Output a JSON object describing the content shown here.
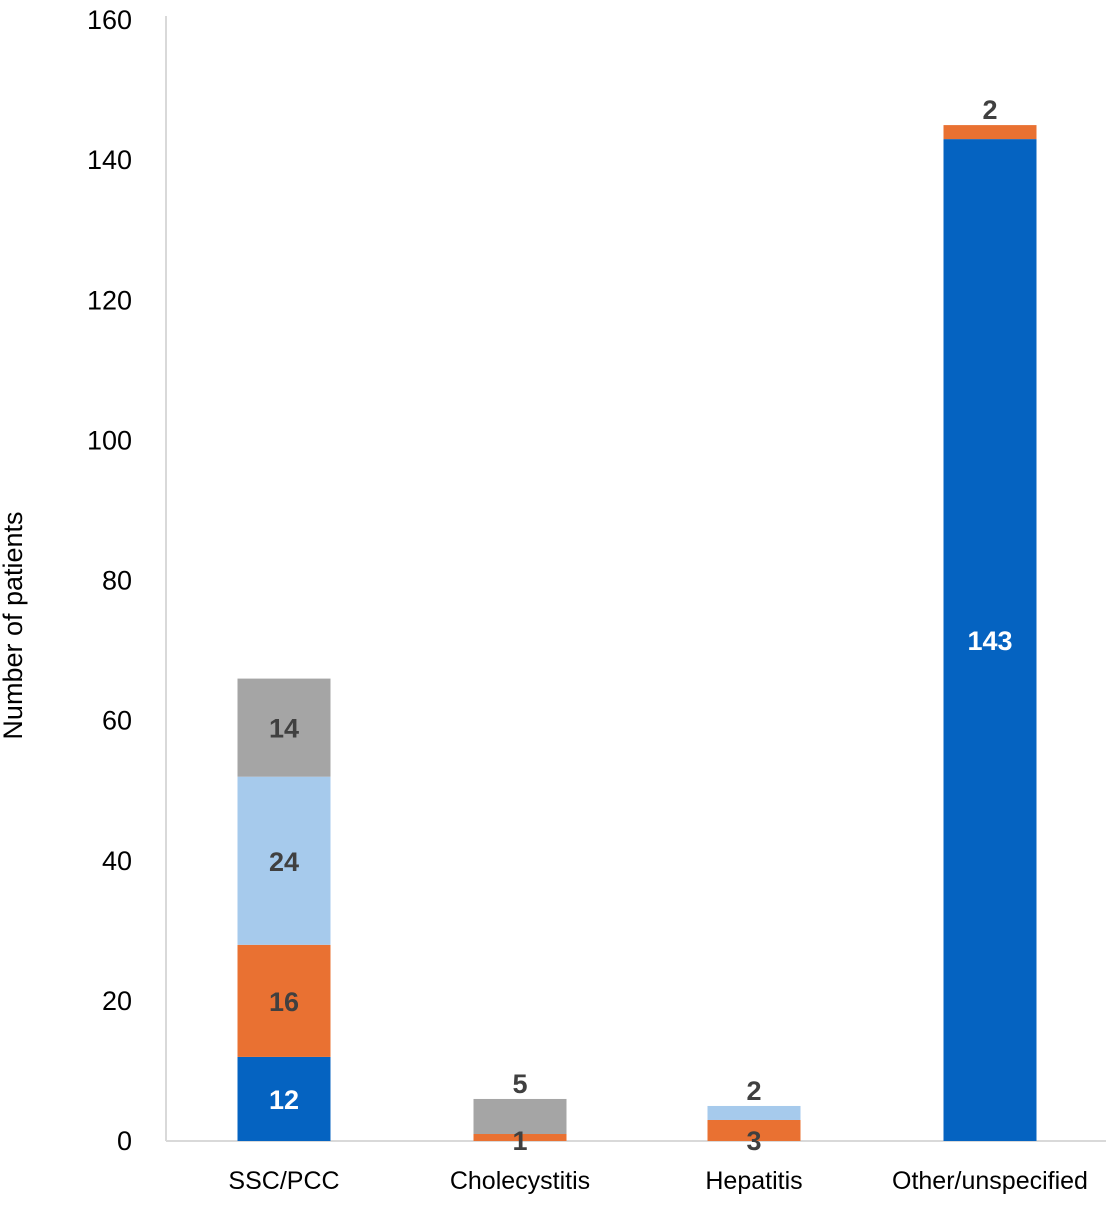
{
  "chart_data": {
    "type": "bar",
    "stacked": true,
    "title": "",
    "xlabel": "",
    "ylabel": "Number of patients",
    "ylim": [
      0,
      160
    ],
    "yticks": [
      0,
      20,
      40,
      60,
      80,
      100,
      120,
      140,
      160
    ],
    "grid": false,
    "legend": "none",
    "categories": [
      "SSC/PCC",
      "Cholecystitis",
      "Hepatitis",
      "Other/unspecified"
    ],
    "series": [
      {
        "color": "#0563C1",
        "label_color": "#FFFFFF",
        "values": [
          12,
          0,
          0,
          143
        ]
      },
      {
        "color": "#E97132",
        "label_color": "#404040",
        "values": [
          16,
          1,
          3,
          2
        ]
      },
      {
        "color": "#A6CAEC",
        "label_color": "#404040",
        "values": [
          24,
          0,
          2,
          0
        ]
      },
      {
        "color": "#A5A5A5",
        "label_color": "#404040",
        "values": [
          14,
          5,
          0,
          0
        ]
      }
    ]
  }
}
